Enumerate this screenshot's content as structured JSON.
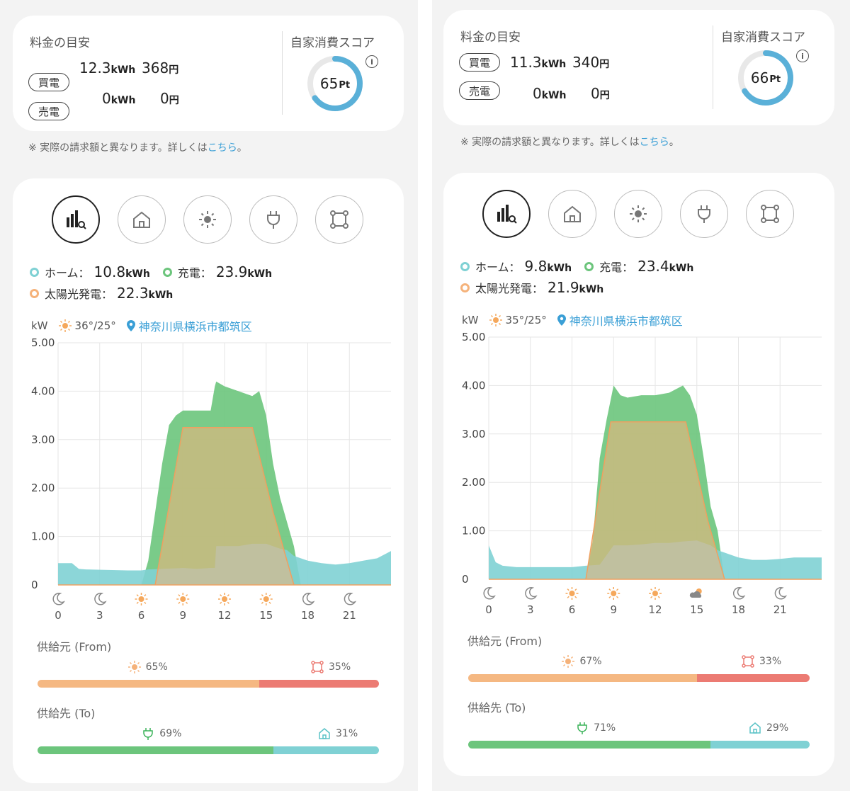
{
  "panels": [
    {
      "summary": {
        "title": "料金の目安",
        "buy_tag": "買電",
        "buy_kwh": "12.3",
        "buy_yen": "368",
        "sell_tag": "売電",
        "sell_kwh": "0",
        "sell_yen": "0",
        "kwh_unit": "kWh",
        "yen_unit": "円",
        "score_title": "自家消費スコア",
        "score": "65",
        "score_unit": "Pt",
        "score_fraction": 0.65
      },
      "note": {
        "prefix": "※ 実際の請求額と異なります。詳しくは",
        "link": "こちら",
        "suffix": "。"
      },
      "legend": {
        "home_label": "ホーム：",
        "home_val": "10.8",
        "charge_label": "充電：",
        "charge_val": "23.9",
        "solar_label": "太陽光発電：",
        "solar_val": "22.3",
        "unit": "kWh"
      },
      "weather": {
        "unit_label": "kW",
        "temp": "36°/25°",
        "location": "神奈川県横浜市都筑区"
      },
      "chart_data": {
        "type": "area",
        "y_ticks": [
          "5.00",
          "4.00",
          "3.00",
          "2.00",
          "1.00",
          "0"
        ],
        "ylim": [
          0,
          5
        ],
        "xlim": [
          0,
          24
        ],
        "x_ticks": [
          "0",
          "3",
          "6",
          "9",
          "12",
          "15",
          "18",
          "21"
        ],
        "x_weather": [
          "moon",
          "moon",
          "sun",
          "sun",
          "sun",
          "sun",
          "moon",
          "moon"
        ],
        "series": [
          {
            "color": "#6cc57c",
            "x": [
              0,
              6,
              6.5,
              7,
              7.5,
              8,
              8.5,
              9,
              10,
              11,
              11.3,
              11.4,
              12,
              13,
              14,
              14.5,
              15,
              15.5,
              16,
              16.5,
              17,
              17.5,
              24
            ],
            "y": [
              0,
              0,
              0.5,
              1.5,
              2.5,
              3.3,
              3.5,
              3.6,
              3.6,
              3.6,
              4.1,
              4.2,
              4.1,
              4.0,
              3.9,
              4.0,
              3.5,
              2.5,
              1.8,
              1.3,
              0.8,
              0,
              0
            ]
          },
          {
            "color": "#7fd1d4",
            "x": [
              0,
              1,
              1.5,
              2,
              5,
              6,
              6.5,
              9,
              10,
              11,
              11.3,
              11.4,
              12,
              13,
              14,
              15,
              16,
              16.5,
              17,
              18,
              19,
              20,
              21,
              22,
              23,
              24
            ],
            "y": [
              0.45,
              0.45,
              0.33,
              0.32,
              0.3,
              0.3,
              0.32,
              0.35,
              0.33,
              0.35,
              0.35,
              0.8,
              0.8,
              0.8,
              0.85,
              0.85,
              0.75,
              0.72,
              0.6,
              0.5,
              0.45,
              0.42,
              0.45,
              0.5,
              0.55,
              0.7
            ]
          },
          {
            "color": "#f5b27a",
            "x": [
              0,
              7,
              9,
              14,
              15.5,
              17,
              24
            ],
            "y": [
              0,
              0,
              3.25,
              3.25,
              1.5,
              0,
              0
            ]
          }
        ]
      },
      "from": {
        "label": "供給元 (From)",
        "solar_pct": 65,
        "solar_text": "65%",
        "battery_text": "35%"
      },
      "to": {
        "label": "供給先 (To)",
        "charge_pct": 69,
        "charge_text": "69%",
        "home_text": "31%"
      }
    },
    {
      "summary": {
        "title": "料金の目安",
        "buy_tag": "買電",
        "buy_kwh": "11.3",
        "buy_yen": "340",
        "sell_tag": "売電",
        "sell_kwh": "0",
        "sell_yen": "0",
        "kwh_unit": "kWh",
        "yen_unit": "円",
        "score_title": "自家消費スコア",
        "score": "66",
        "score_unit": "Pt",
        "score_fraction": 0.66
      },
      "note": {
        "prefix": "※ 実際の請求額と異なります。詳しくは",
        "link": "こちら",
        "suffix": "。"
      },
      "legend": {
        "home_label": "ホーム：",
        "home_val": "9.8",
        "charge_label": "充電：",
        "charge_val": "23.4",
        "solar_label": "太陽光発電：",
        "solar_val": "21.9",
        "unit": "kWh"
      },
      "weather": {
        "unit_label": "kW",
        "temp": "35°/25°",
        "location": "神奈川県横浜市都筑区"
      },
      "chart_data": {
        "type": "area",
        "y_ticks": [
          "5.00",
          "4.00",
          "3.00",
          "2.00",
          "1.00",
          "0"
        ],
        "ylim": [
          0,
          5
        ],
        "xlim": [
          0,
          24
        ],
        "x_ticks": [
          "0",
          "3",
          "6",
          "9",
          "12",
          "15",
          "18",
          "21"
        ],
        "x_weather": [
          "moon",
          "moon",
          "sun",
          "sun",
          "sun",
          "cloud",
          "moon",
          "moon"
        ],
        "series": [
          {
            "color": "#6cc57c",
            "x": [
              0,
              7,
              7.5,
              8,
              8.5,
              9,
              9.5,
              10,
              11,
              12,
              13,
              14,
              14.5,
              15,
              15.5,
              16,
              16.5,
              17,
              24
            ],
            "y": [
              0,
              0,
              0.8,
              2.5,
              3.3,
              4.0,
              3.8,
              3.75,
              3.8,
              3.8,
              3.85,
              4.0,
              3.8,
              3.4,
              2.5,
              1.5,
              1.0,
              0,
              0
            ]
          },
          {
            "color": "#7fd1d4",
            "x": [
              0,
              0.5,
              1,
              2,
              6,
              7,
              8,
              9,
              10,
              11,
              12,
              13,
              14,
              15,
              15.5,
              16,
              16.5,
              17,
              18,
              19,
              20,
              21,
              22,
              23,
              24
            ],
            "y": [
              0.7,
              0.35,
              0.28,
              0.25,
              0.25,
              0.28,
              0.3,
              0.7,
              0.7,
              0.72,
              0.75,
              0.75,
              0.78,
              0.8,
              0.75,
              0.7,
              0.6,
              0.55,
              0.45,
              0.4,
              0.4,
              0.42,
              0.45,
              0.45,
              0.45
            ]
          },
          {
            "color": "#f5b27a",
            "x": [
              0,
              7,
              8.8,
              14.2,
              15.8,
              17,
              24
            ],
            "y": [
              0,
              0,
              3.25,
              3.25,
              1.2,
              0,
              0
            ]
          }
        ]
      },
      "from": {
        "label": "供給元 (From)",
        "solar_pct": 67,
        "solar_text": "67%",
        "battery_text": "33%"
      },
      "to": {
        "label": "供給先 (To)",
        "charge_pct": 71,
        "charge_text": "71%",
        "home_text": "29%"
      }
    }
  ]
}
